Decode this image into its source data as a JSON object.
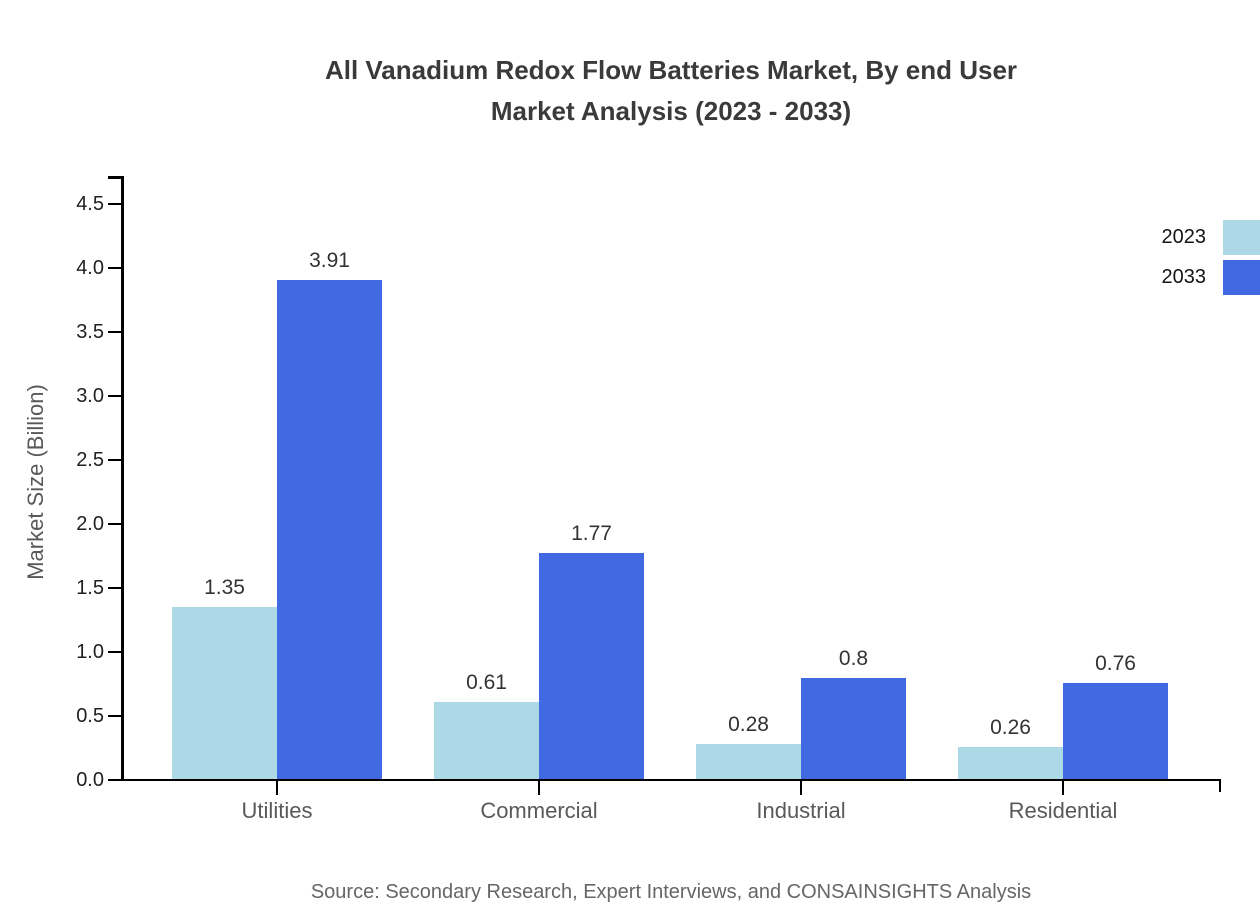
{
  "title": {
    "line1": "All Vanadium Redox Flow Batteries Market, By end User",
    "line2": "Market Analysis (2023 - 2033)"
  },
  "chart_data": {
    "type": "bar",
    "title": "All Vanadium Redox Flow Batteries Market, By end User Market Analysis (2023 - 2033)",
    "categories": [
      "Utilities",
      "Commercial",
      "Industrial",
      "Residential"
    ],
    "series": [
      {
        "name": "2023",
        "color": "#ADD8E6",
        "values": [
          1.35,
          0.61,
          0.28,
          0.26
        ]
      },
      {
        "name": "2033",
        "color": "#4169E1",
        "values": [
          3.91,
          1.77,
          0.8,
          0.76
        ]
      }
    ],
    "xlabel": "",
    "ylabel": "Market Size (Billion)",
    "ylim": [
      0,
      4.5
    ],
    "ytick_labels": [
      "0.0",
      "0.5",
      "1.0",
      "1.5",
      "2.0",
      "2.5",
      "3.0",
      "3.5",
      "4.0",
      "4.5"
    ],
    "grid": false,
    "bar_value_labels": true,
    "legend_position": "top-right"
  },
  "legend": {
    "items": [
      {
        "label": "2023",
        "color": "#ADD8E6"
      },
      {
        "label": "2033",
        "color": "#4169E1"
      }
    ]
  },
  "source": {
    "text": "Source: Secondary Research, Expert Interviews, and CONSAINSIGHTS Analysis"
  }
}
